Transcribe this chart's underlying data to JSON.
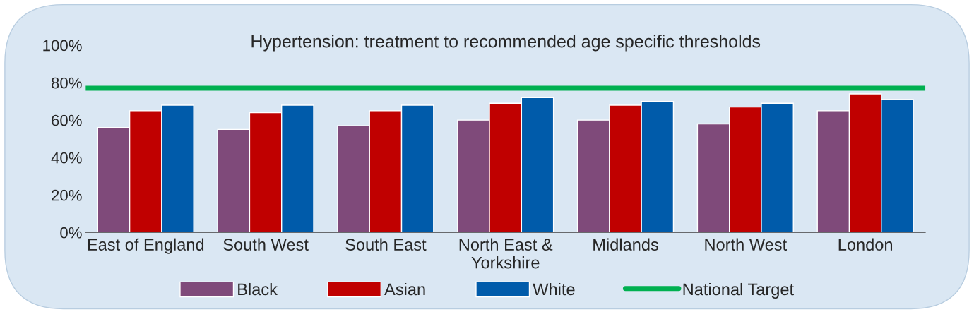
{
  "chart_data": {
    "type": "bar",
    "title": "Hypertension: treatment to recommended age specific thresholds",
    "categories": [
      "East of England",
      "South West",
      "South East",
      "North East & Yorkshire",
      "Midlands",
      "North West",
      "London"
    ],
    "series": [
      {
        "name": "Black",
        "color": "#7f4a7a",
        "values": [
          56,
          55,
          57,
          60,
          60,
          58,
          65
        ]
      },
      {
        "name": "Asian",
        "color": "#c00000",
        "values": [
          65,
          64,
          65,
          69,
          68,
          67,
          74
        ]
      },
      {
        "name": "White",
        "color": "#005baa",
        "values": [
          68,
          68,
          68,
          72,
          70,
          69,
          71
        ]
      }
    ],
    "ylim": [
      0,
      100
    ],
    "yticks": [
      {
        "value": 0,
        "label": "0%"
      },
      {
        "value": 20,
        "label": "20%"
      },
      {
        "value": 40,
        "label": "40%"
      },
      {
        "value": 60,
        "label": "60%"
      },
      {
        "value": 80,
        "label": "80%"
      },
      {
        "value": 100,
        "label": "100%"
      }
    ],
    "ref_lines": [
      {
        "axis": "y",
        "value": 77,
        "label": "National Target",
        "color": "#00b050",
        "line_style": "solid"
      }
    ],
    "grid": false,
    "legend": "bottom"
  }
}
